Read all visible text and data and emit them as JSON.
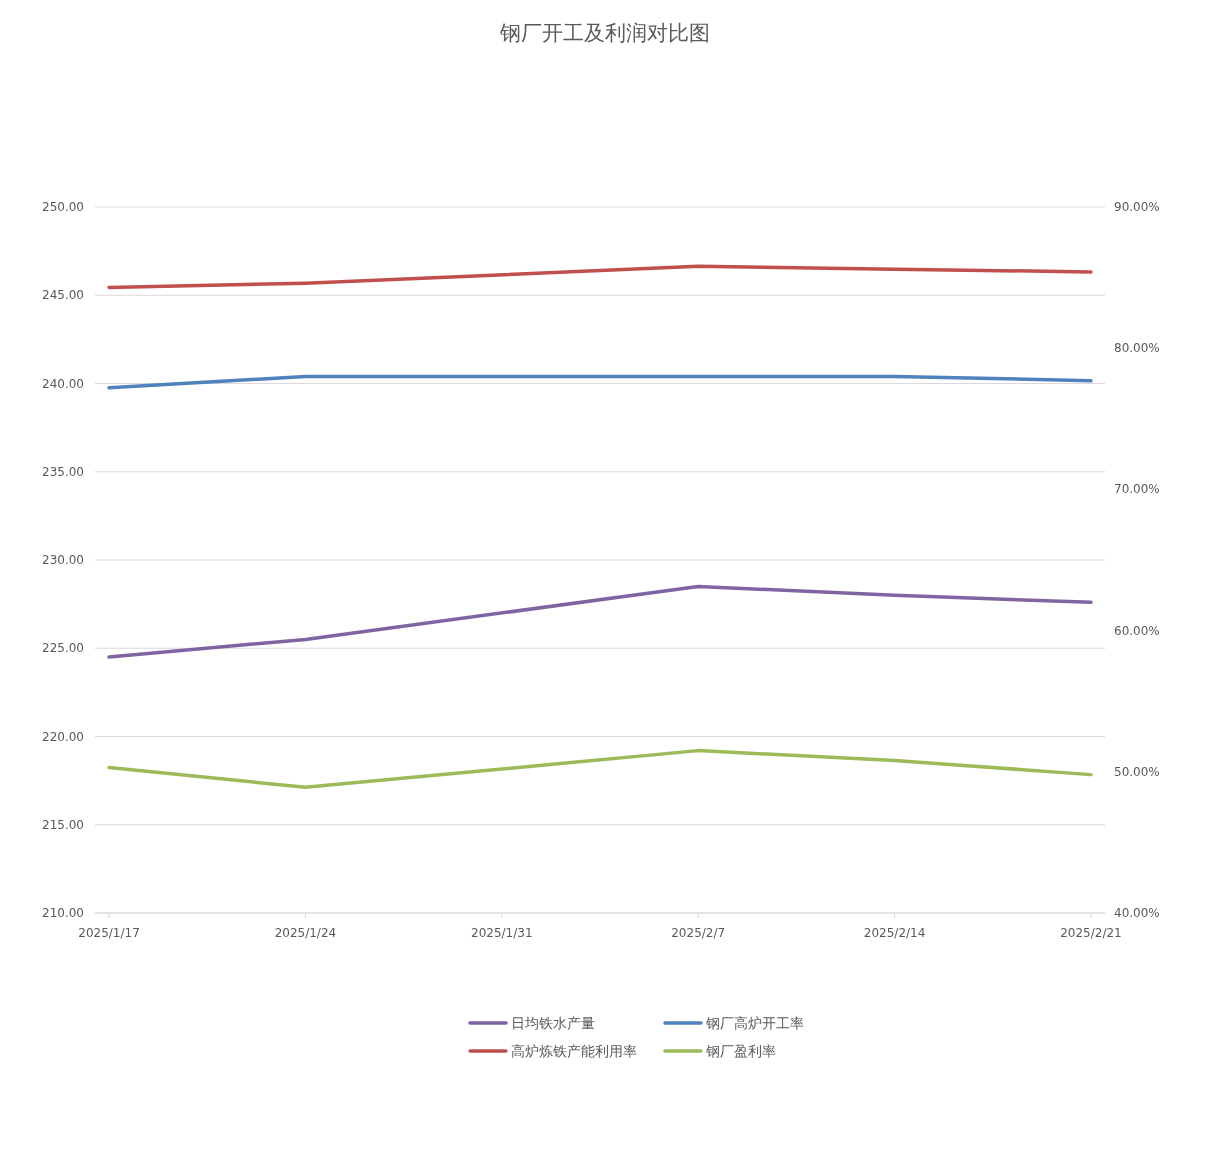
{
  "chart_data": {
    "type": "line",
    "title": "钢厂开工及利润对比图",
    "x": [
      "2025-01-17",
      "2025-01-24",
      "2025-02-07",
      "2025-02-14",
      "2025-02-21"
    ],
    "xlim": [
      "2025-01-16T12:00",
      "2025-02-21T12:00"
    ],
    "xticks": [
      {
        "value": "2025-01-17",
        "label": "2025/1/17"
      },
      {
        "value": "2025-01-24",
        "label": "2025/1/24"
      },
      {
        "value": "2025-01-31",
        "label": "2025/1/31"
      },
      {
        "value": "2025-02-07",
        "label": "2025/2/7"
      },
      {
        "value": "2025-02-14",
        "label": "2025/2/14"
      },
      {
        "value": "2025-02-21",
        "label": "2025/2/21"
      }
    ],
    "ylim": [
      210,
      250
    ],
    "yticks": [
      {
        "value": 210,
        "label": "210.00"
      },
      {
        "value": 215,
        "label": "215.00"
      },
      {
        "value": 220,
        "label": "220.00"
      },
      {
        "value": 225,
        "label": "225.00"
      },
      {
        "value": 230,
        "label": "230.00"
      },
      {
        "value": 235,
        "label": "235.00"
      },
      {
        "value": 240,
        "label": "240.00"
      },
      {
        "value": 245,
        "label": "245.00"
      },
      {
        "value": 250,
        "label": "250.00"
      }
    ],
    "y2lim": [
      40,
      90
    ],
    "y2ticks": [
      {
        "value": 40,
        "label": "40.00%"
      },
      {
        "value": 50,
        "label": "50.00%"
      },
      {
        "value": 60,
        "label": "60.00%"
      },
      {
        "value": 70,
        "label": "70.00%"
      },
      {
        "value": 80,
        "label": "80.00%"
      },
      {
        "value": 90,
        "label": "90.00%"
      }
    ],
    "grid": "y",
    "legend": "bottom",
    "line_style": "solid",
    "series": [
      {
        "name": "日均铁水产量",
        "color": "#8064a2",
        "values": [
          224.5,
          225.5,
          228.5,
          228.0,
          227.6
        ]
      },
      {
        "name": "钢厂高炉开工率",
        "color": "#4f81bd",
        "axis": "y2",
        "values": [
          77.2,
          78.0,
          78.0,
          78.0,
          77.7
        ]
      },
      {
        "name": "高炉炼铁产能利用率",
        "color": "#c0504d",
        "axis": "y2",
        "values": [
          84.3,
          84.6,
          85.8,
          85.6,
          85.4
        ]
      },
      {
        "name": "钢厂盈利率",
        "color": "#9bbb59",
        "axis": "y2",
        "values": [
          50.3,
          48.9,
          51.5,
          50.8,
          49.8
        ]
      }
    ]
  }
}
